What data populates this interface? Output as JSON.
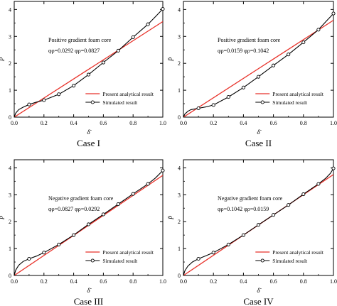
{
  "chart_data": [
    {
      "type": "line",
      "caption": "Case I",
      "xlabel": "δ̄",
      "ylabel": "P̄",
      "xlim": [
        0,
        1.0
      ],
      "ylim": [
        0,
        4.3
      ],
      "xticks": [
        "0.0",
        "0.2",
        "0.4",
        "0.6",
        "0.8",
        "1.0"
      ],
      "yticks": [
        "0",
        "1",
        "2",
        "3",
        "4"
      ],
      "annotations": [
        "Positive gradient foam core",
        "φρ=0.0292 φρ=0.0827"
      ],
      "legend_position": "bottom-right",
      "series": [
        {
          "name": "Present analytical result",
          "color": "#e8322a",
          "marker": "none",
          "x": [
            0,
            1.0
          ],
          "y": [
            0,
            3.55
          ]
        },
        {
          "name": "Simulated result",
          "color": "#000000",
          "marker": "open-circle",
          "x": [
            0,
            0.01,
            0.03,
            0.06,
            0.1,
            0.15,
            0.2,
            0.3,
            0.4,
            0.5,
            0.6,
            0.7,
            0.8,
            0.9,
            0.95,
            1.0
          ],
          "y": [
            0,
            0.15,
            0.28,
            0.37,
            0.47,
            0.56,
            0.63,
            0.85,
            1.17,
            1.58,
            2.03,
            2.47,
            2.97,
            3.45,
            3.73,
            4.02
          ]
        }
      ]
    },
    {
      "type": "line",
      "caption": "Case II",
      "xlabel": "δ̄",
      "ylabel": "P̄",
      "xlim": [
        0,
        1.0
      ],
      "ylim": [
        0,
        4.3
      ],
      "xticks": [
        "0.0",
        "0.2",
        "0.4",
        "0.6",
        "0.8",
        "1.0"
      ],
      "yticks": [
        "0",
        "1",
        "2",
        "3",
        "4"
      ],
      "annotations": [
        "Positive gradient foam core",
        "φρ=0.0159 φρ=0.1042"
      ],
      "legend_position": "bottom-right",
      "series": [
        {
          "name": "Present analytical result",
          "color": "#e8322a",
          "marker": "none",
          "x": [
            0,
            1.0
          ],
          "y": [
            0,
            3.6
          ]
        },
        {
          "name": "Simulated result",
          "color": "#000000",
          "marker": "open-circle",
          "x": [
            0,
            0.01,
            0.03,
            0.05,
            0.1,
            0.15,
            0.2,
            0.3,
            0.4,
            0.5,
            0.6,
            0.7,
            0.8,
            0.9,
            0.95,
            1.0
          ],
          "y": [
            0,
            0.12,
            0.22,
            0.28,
            0.33,
            0.38,
            0.45,
            0.75,
            1.1,
            1.5,
            1.92,
            2.33,
            2.78,
            3.25,
            3.55,
            3.85
          ]
        }
      ]
    },
    {
      "type": "line",
      "caption": "Case III",
      "xlabel": "δ̄",
      "ylabel": "P̄",
      "xlim": [
        0,
        1.0
      ],
      "ylim": [
        0,
        4.3
      ],
      "xticks": [
        "0.0",
        "0.2",
        "0.4",
        "0.6",
        "0.8",
        "1.0"
      ],
      "yticks": [
        "0",
        "1",
        "2",
        "3",
        "4"
      ],
      "annotations": [
        "Negative gradient foam core",
        "φρ=0.0827 φρ=0.0292"
      ],
      "legend_position": "bottom-right",
      "series": [
        {
          "name": "Present analytical result",
          "color": "#e8322a",
          "marker": "none",
          "x": [
            0,
            1.0
          ],
          "y": [
            0,
            3.72
          ]
        },
        {
          "name": "Simulated result",
          "color": "#000000",
          "marker": "open-circle",
          "x": [
            0,
            0.01,
            0.03,
            0.06,
            0.1,
            0.15,
            0.2,
            0.3,
            0.4,
            0.5,
            0.6,
            0.7,
            0.8,
            0.9,
            0.95,
            1.0
          ],
          "y": [
            0,
            0.2,
            0.38,
            0.52,
            0.62,
            0.72,
            0.85,
            1.15,
            1.5,
            1.9,
            2.27,
            2.65,
            3.03,
            3.4,
            3.62,
            3.9
          ]
        }
      ]
    },
    {
      "type": "line",
      "caption": "Case IV",
      "xlabel": "δ̄",
      "ylabel": "P̄",
      "xlim": [
        0,
        1.0
      ],
      "ylim": [
        0,
        4.3
      ],
      "xticks": [
        "0.0",
        "0.2",
        "0.4",
        "0.6",
        "0.8",
        "1.0"
      ],
      "yticks": [
        "0",
        "1",
        "2",
        "3",
        "4"
      ],
      "annotations": [
        "Negative gradient foam core",
        "φρ=0.1042 φρ=0.0159"
      ],
      "legend_position": "bottom-right",
      "series": [
        {
          "name": "Present analytical result",
          "color": "#e8322a",
          "marker": "none",
          "x": [
            0,
            1.0
          ],
          "y": [
            0,
            3.75
          ]
        },
        {
          "name": "Simulated result",
          "color": "#000000",
          "marker": "open-circle",
          "x": [
            0,
            0.01,
            0.03,
            0.06,
            0.1,
            0.15,
            0.2,
            0.3,
            0.4,
            0.5,
            0.6,
            0.7,
            0.8,
            0.9,
            0.95,
            0.98,
            1.0
          ],
          "y": [
            0,
            0.18,
            0.35,
            0.5,
            0.62,
            0.73,
            0.85,
            1.15,
            1.5,
            1.88,
            2.25,
            2.62,
            3.02,
            3.4,
            3.62,
            3.8,
            3.98
          ]
        }
      ]
    }
  ]
}
